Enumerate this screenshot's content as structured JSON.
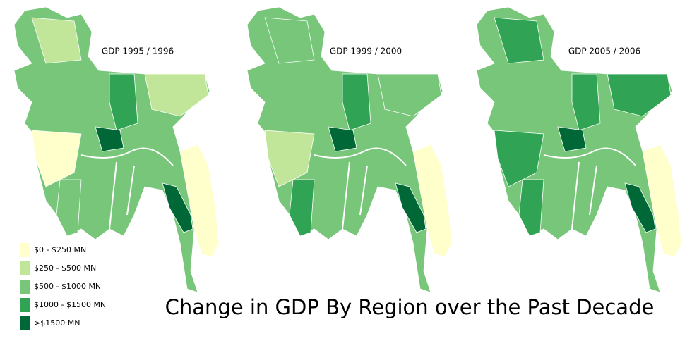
{
  "maps": [
    {
      "title": "GDP 1995 / 1996"
    },
    {
      "title": "GDP 1999 / 2000"
    },
    {
      "title": "GDP 2005 / 2006"
    }
  ],
  "legend": {
    "items": [
      {
        "label": "$0 - $250 MN",
        "color": "#ffffcc"
      },
      {
        "label": "$250 - $500 MN",
        "color": "#c2e699"
      },
      {
        "label": "$500 - $1000 MN",
        "color": "#78c679"
      },
      {
        "label": "$1000 - $1500 MN",
        "color": "#31a354"
      },
      {
        "label": ">$1500 MN",
        "color": "#006837"
      }
    ]
  },
  "title": "Change in GDP By Region over the Past Decade"
}
